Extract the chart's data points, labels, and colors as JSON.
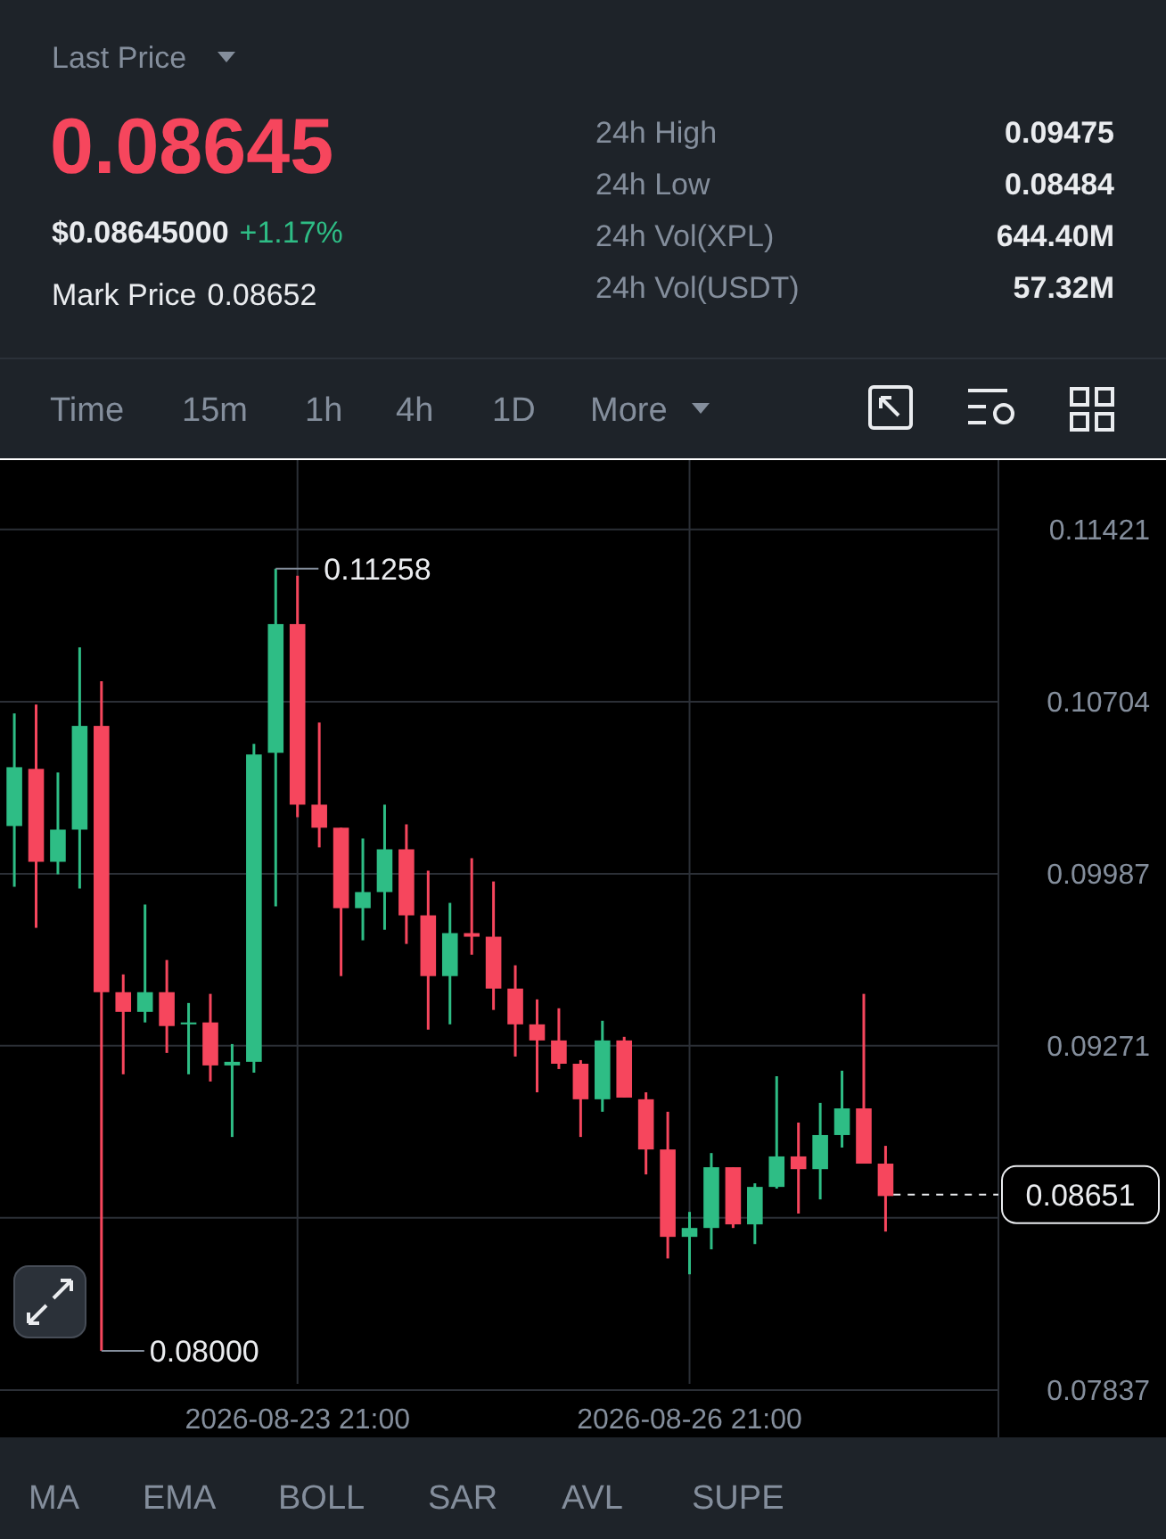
{
  "chart_data": [
    {
      "type": "other",
      "title": "Last Price",
      "annotations": [
        "0.08645",
        "$0.08645000",
        "+1.17%",
        "Mark Price",
        "0.08652",
        "24h High",
        "0.09475",
        "24h Low",
        "0.08484",
        "24h Vol(XPL)",
        "644.40M",
        "24h Vol(USDT)",
        "57.32M"
      ]
    },
    {
      "type": "other",
      "annotations": [
        "Time",
        "15m",
        "1h",
        "4h",
        "1D",
        "More"
      ]
    },
    {
      "type": "candlestick",
      "x": [
        "2026-08-21T17:00",
        "2026-08-21T21:00",
        "2026-08-22T01:00",
        "2026-08-22T05:00",
        "2026-08-22T09:00",
        "2026-08-22T13:00",
        "2026-08-22T17:00",
        "2026-08-22T21:00",
        "2026-08-23T01:00",
        "2026-08-23T05:00",
        "2026-08-23T09:00",
        "2026-08-23T13:00",
        "2026-08-23T17:00",
        "2026-08-23T21:00",
        "2026-08-24T01:00",
        "2026-08-24T05:00",
        "2026-08-24T09:00",
        "2026-08-24T13:00",
        "2026-08-24T17:00",
        "2026-08-24T21:00",
        "2026-08-25T01:00",
        "2026-08-25T05:00",
        "2026-08-25T09:00",
        "2026-08-25T13:00",
        "2026-08-25T17:00",
        "2026-08-25T21:00",
        "2026-08-26T01:00",
        "2026-08-26T05:00",
        "2026-08-26T09:00",
        "2026-08-26T13:00",
        "2026-08-26T17:00",
        "2026-08-26T21:00",
        "2026-08-27T01:00",
        "2026-08-27T05:00",
        "2026-08-27T09:00",
        "2026-08-27T13:00",
        "2026-08-27T17:00",
        "2026-08-27T21:00",
        "2026-08-28T01:00",
        "2026-08-28T05:00",
        "2026-08-28T09:00"
      ],
      "ohlc": [
        [
          0.10186,
          0.10655,
          0.09933,
          0.10431
        ],
        [
          0.10424,
          0.10692,
          0.09762,
          0.10037
        ],
        [
          0.10037,
          0.10409,
          0.09985,
          0.10171
        ],
        [
          0.10171,
          0.1093,
          0.09926,
          0.10603
        ],
        [
          0.10603,
          0.10789,
          0.08,
          0.09494
        ],
        [
          0.09494,
          0.09568,
          0.09152,
          0.09412
        ],
        [
          0.09412,
          0.09859,
          0.09368,
          0.09494
        ],
        [
          0.09494,
          0.09628,
          0.09241,
          0.09353
        ],
        [
          0.0936,
          0.09449,
          0.09152,
          0.09368
        ],
        [
          0.09368,
          0.09487,
          0.09122,
          0.09189
        ],
        [
          0.09189,
          0.09278,
          0.08891,
          0.09204
        ],
        [
          0.09204,
          0.10528,
          0.09159,
          0.10484
        ],
        [
          0.10491,
          0.11258,
          0.09851,
          0.11027
        ],
        [
          0.11027,
          0.11228,
          0.10223,
          0.10275
        ],
        [
          0.10275,
          0.10617,
          0.10097,
          0.10179
        ],
        [
          0.10179,
          0.10179,
          0.09561,
          0.09844
        ],
        [
          0.09844,
          0.10134,
          0.0971,
          0.09911
        ],
        [
          0.09911,
          0.10275,
          0.09754,
          0.10089
        ],
        [
          0.10089,
          0.10193,
          0.09695,
          0.09814
        ],
        [
          0.09814,
          0.1,
          0.09338,
          0.09561
        ],
        [
          0.09561,
          0.09866,
          0.0936,
          0.0974
        ],
        [
          0.0974,
          0.10052,
          0.0965,
          0.09725
        ],
        [
          0.09725,
          0.09955,
          0.0942,
          0.09509
        ],
        [
          0.09509,
          0.09606,
          0.09226,
          0.0936
        ],
        [
          0.0936,
          0.09464,
          0.09077,
          0.09293
        ],
        [
          0.09293,
          0.09427,
          0.09174,
          0.09196
        ],
        [
          0.09196,
          0.09211,
          0.08891,
          0.09048
        ],
        [
          0.09048,
          0.09375,
          0.08996,
          0.09293
        ],
        [
          0.09293,
          0.09308,
          0.09055,
          0.09055
        ],
        [
          0.09048,
          0.09077,
          0.08735,
          0.08839
        ],
        [
          0.08839,
          0.08996,
          0.08385,
          0.08475
        ],
        [
          0.08475,
          0.08579,
          0.08319,
          0.08512
        ],
        [
          0.08512,
          0.08824,
          0.08423,
          0.08765
        ],
        [
          0.08765,
          0.08765,
          0.08512,
          0.08527
        ],
        [
          0.08527,
          0.08698,
          0.08445,
          0.08683
        ],
        [
          0.08683,
          0.09144,
          0.08676,
          0.0881
        ],
        [
          0.0881,
          0.08951,
          0.08572,
          0.08757
        ],
        [
          0.08757,
          0.09033,
          0.08631,
          0.08899
        ],
        [
          0.08899,
          0.09167,
          0.08847,
          0.0901
        ],
        [
          0.0901,
          0.09487,
          0.0878,
          0.0878
        ],
        [
          0.0878,
          0.08854,
          0.08497,
          0.08645
        ]
      ],
      "colors": [
        "#2ebd85",
        "#f6465d",
        "#2ebd85",
        "#2ebd85",
        "#f6465d",
        "#f6465d",
        "#2ebd85",
        "#f6465d",
        "#2ebd85",
        "#f6465d",
        "#2ebd85",
        "#2ebd85",
        "#2ebd85",
        "#f6465d",
        "#f6465d",
        "#f6465d",
        "#2ebd85",
        "#2ebd85",
        "#f6465d",
        "#f6465d",
        "#2ebd85",
        "#f6465d",
        "#f6465d",
        "#f6465d",
        "#f6465d",
        "#f6465d",
        "#f6465d",
        "#2ebd85",
        "#f6465d",
        "#f6465d",
        "#f6465d",
        "#2ebd85",
        "#2ebd85",
        "#f6465d",
        "#2ebd85",
        "#2ebd85",
        "#f6465d",
        "#2ebd85",
        "#2ebd85",
        "#f6465d",
        "#f6465d"
      ],
      "xlim": [
        "2026-08-21T14:22",
        "2026-08-30T12:30"
      ],
      "xticks": [
        {
          "value": "2026-08-23T21:00",
          "label": "2026-08-23 21:00"
        },
        {
          "value": "2026-08-26T21:00",
          "label": "2026-08-26 21:00"
        }
      ],
      "ylim": [
        0.0764,
        0.1171
      ],
      "yticks": [
        0.11421,
        0.10704,
        0.09987,
        0.09271,
        {
          "value": 0.08554,
          "label": null
        },
        0.07837
      ],
      "grid": true,
      "ref_lines": [
        {
          "axis": "y",
          "value": 0.08651,
          "label": "0.08651",
          "line_style": "dashed"
        }
      ],
      "annotations": [
        {
          "text": "0.11258",
          "x": "2026-08-23T17:00",
          "y": 0.11258
        },
        {
          "text": "0.08000",
          "x": "2026-08-22T09:00",
          "y": 0.08
        }
      ]
    },
    {
      "type": "other",
      "annotations": [
        "MA",
        "EMA",
        "BOLL",
        "SAR",
        "AVL",
        "SUPE"
      ]
    }
  ]
}
